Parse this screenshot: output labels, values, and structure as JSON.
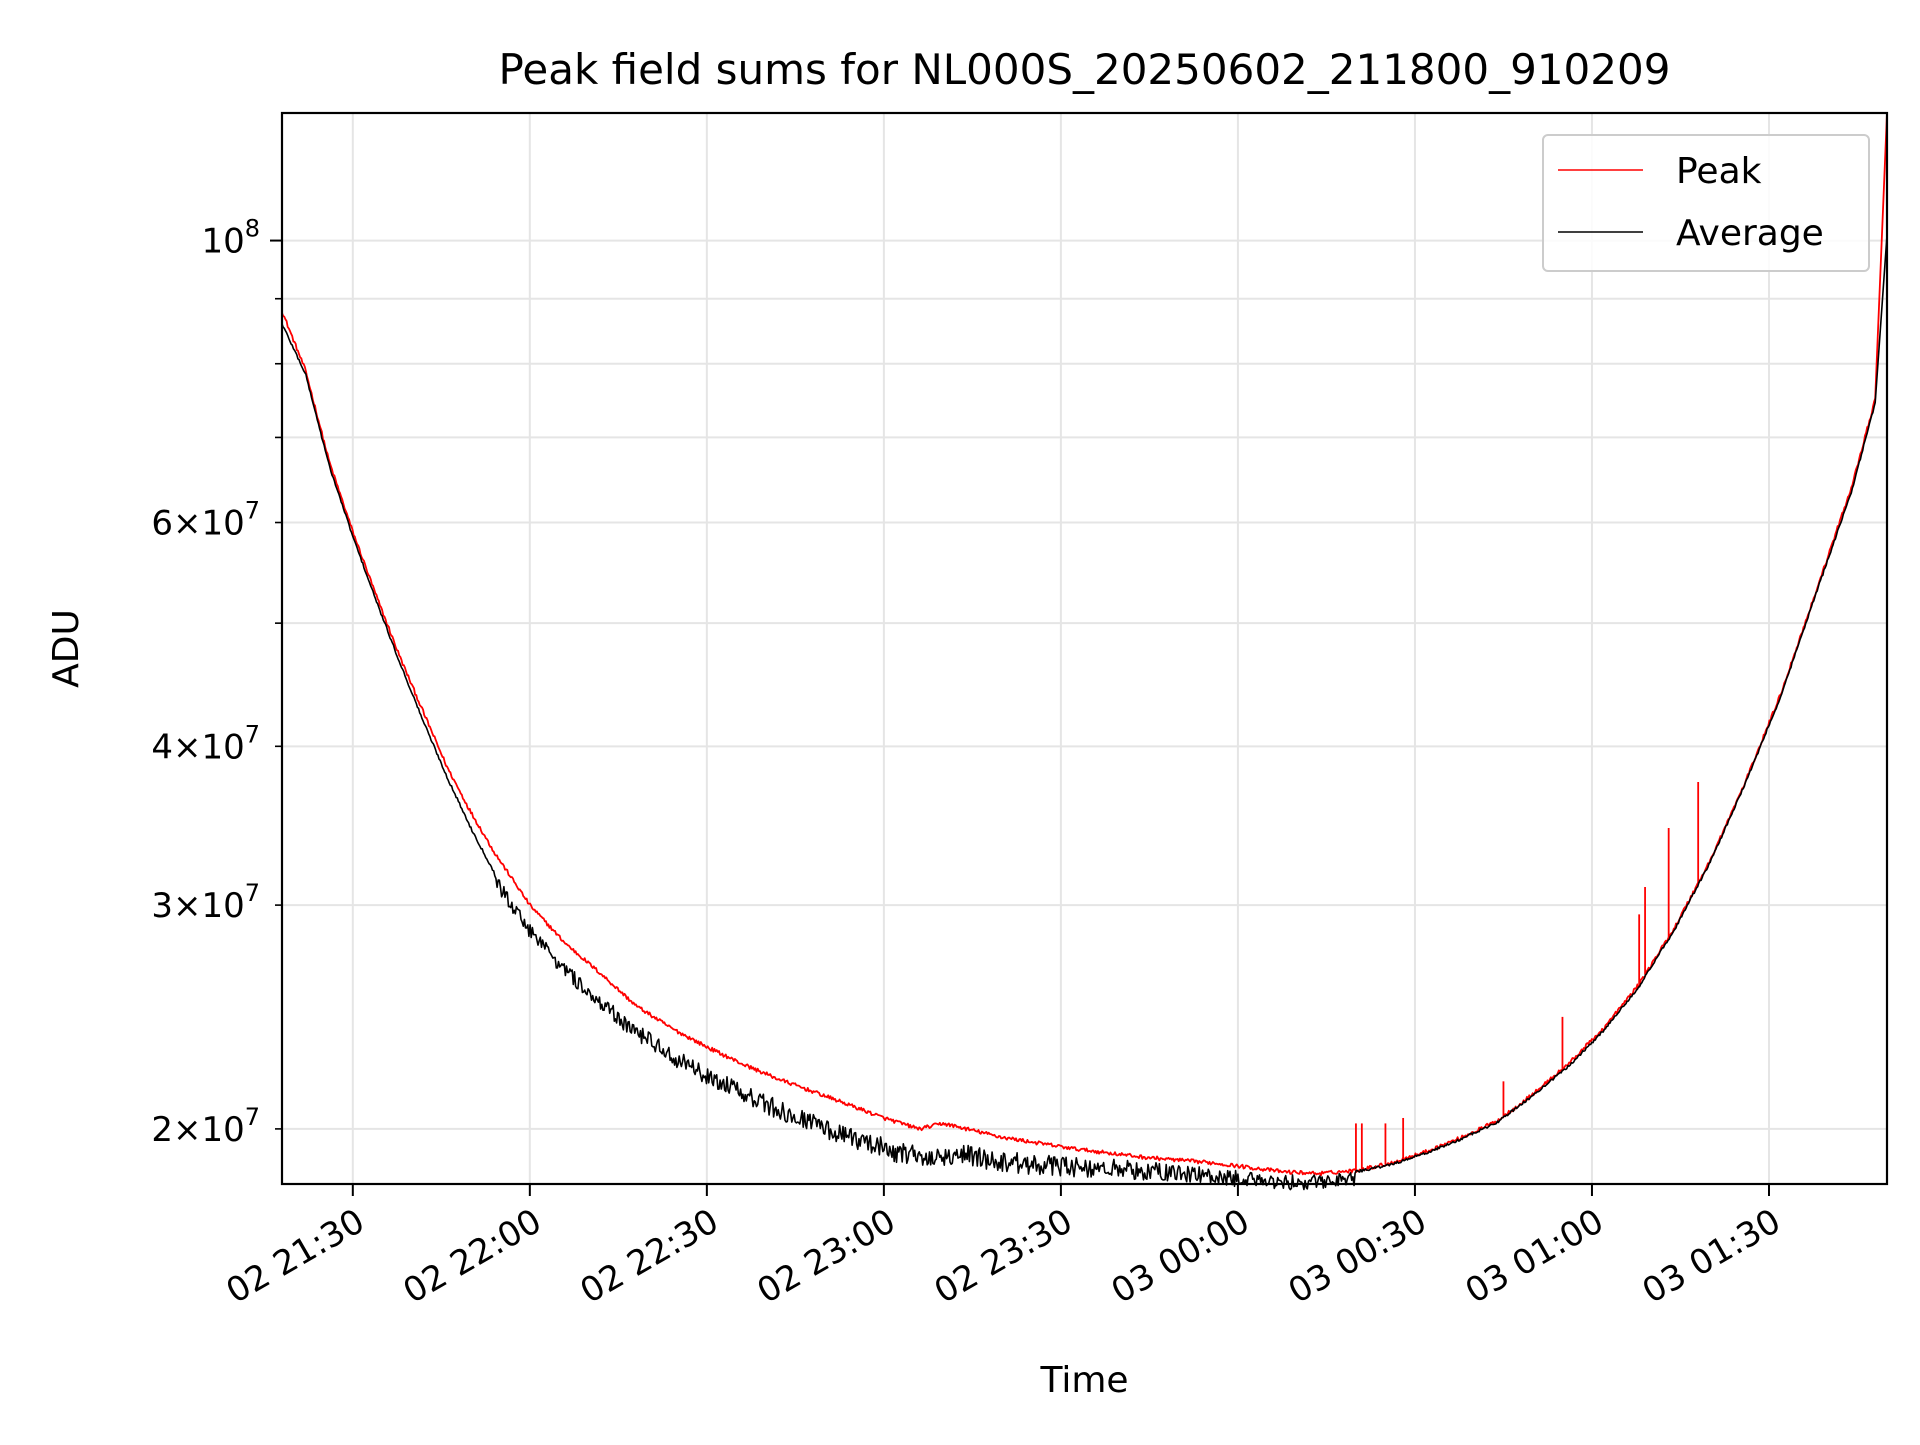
{
  "chart_data": {
    "type": "line",
    "title": "Peak field sums for NL000S_20250602_211800_910209",
    "xlabel": "Time",
    "ylabel": "ADU",
    "x_scale": "time",
    "y_scale": "log",
    "xlim": [
      "2025-06-02 21:18",
      "2025-06-03 01:50"
    ],
    "ylim": [
      18100000,
      126000000
    ],
    "grid": true,
    "legend_position": "top-right",
    "x_ticks": [
      {
        "t": "2025-06-02 21:30",
        "label": "02 21:30"
      },
      {
        "t": "2025-06-02 22:00",
        "label": "02 22:00"
      },
      {
        "t": "2025-06-02 22:30",
        "label": "02 22:30"
      },
      {
        "t": "2025-06-02 23:00",
        "label": "02 23:00"
      },
      {
        "t": "2025-06-02 23:30",
        "label": "02 23:30"
      },
      {
        "t": "2025-06-03 00:00",
        "label": "03 00:00"
      },
      {
        "t": "2025-06-03 00:30",
        "label": "03 00:30"
      },
      {
        "t": "2025-06-03 01:00",
        "label": "03 01:00"
      },
      {
        "t": "2025-06-03 01:30",
        "label": "03 01:30"
      }
    ],
    "y_major_ticks": [
      {
        "value": 100000000,
        "base": "10",
        "exp": "8"
      }
    ],
    "y_minor_ticks": [
      {
        "value": 20000000,
        "mant": "2",
        "exp": "7"
      },
      {
        "value": 30000000,
        "mant": "3",
        "exp": "7"
      },
      {
        "value": 40000000,
        "mant": "4",
        "exp": "7"
      },
      {
        "value": 50000000,
        "mant": "",
        "exp": ""
      },
      {
        "value": 60000000,
        "mant": "6",
        "exp": "7"
      },
      {
        "value": 70000000,
        "mant": "",
        "exp": ""
      },
      {
        "value": 80000000,
        "mant": "",
        "exp": ""
      },
      {
        "value": 90000000,
        "mant": "",
        "exp": ""
      }
    ],
    "series": [
      {
        "name": "Peak",
        "color": "#ff0000",
        "x": [
          "2025-06-02 21:18",
          "2025-06-02 21:22",
          "2025-06-02 21:26",
          "2025-06-02 21:30",
          "2025-06-02 21:34",
          "2025-06-02 21:38",
          "2025-06-02 21:42",
          "2025-06-02 21:46",
          "2025-06-02 21:50",
          "2025-06-02 21:54",
          "2025-06-02 22:00",
          "2025-06-02 22:06",
          "2025-06-02 22:12",
          "2025-06-02 22:18",
          "2025-06-02 22:24",
          "2025-06-02 22:30",
          "2025-06-02 22:36",
          "2025-06-02 22:42",
          "2025-06-02 22:48",
          "2025-06-02 22:54",
          "2025-06-02 23:00",
          "2025-06-02 23:06",
          "2025-06-02 23:10",
          "2025-06-02 23:14",
          "2025-06-02 23:20",
          "2025-06-02 23:26",
          "2025-06-02 23:32",
          "2025-06-02 23:38",
          "2025-06-02 23:44",
          "2025-06-02 23:50",
          "2025-06-02 23:56",
          "2025-06-03 00:02",
          "2025-06-03 00:08",
          "2025-06-03 00:14",
          "2025-06-03 00:20",
          "2025-06-03 00:26",
          "2025-06-03 00:32",
          "2025-06-03 00:38",
          "2025-06-03 00:44",
          "2025-06-03 00:50",
          "2025-06-03 00:56",
          "2025-06-03 01:02",
          "2025-06-03 01:08",
          "2025-06-03 01:14",
          "2025-06-03 01:20",
          "2025-06-03 01:26",
          "2025-06-03 01:32",
          "2025-06-03 01:38",
          "2025-06-03 01:44",
          "2025-06-03 01:48",
          "2025-06-03 01:50"
        ],
        "values": [
          88000000,
          79000000,
          67000000,
          59000000,
          52500000,
          47000000,
          42500000,
          38500000,
          35500000,
          33000000,
          30000000,
          28000000,
          26500000,
          25000000,
          24000000,
          23200000,
          22500000,
          21900000,
          21400000,
          20900000,
          20400000,
          20000000,
          20200000,
          20000000,
          19700000,
          19500000,
          19300000,
          19150000,
          19000000,
          18900000,
          18800000,
          18650000,
          18500000,
          18450000,
          18550000,
          18800000,
          19200000,
          19700000,
          20300000,
          21300000,
          22500000,
          24000000,
          26000000,
          28800000,
          32500000,
          37500000,
          44000000,
          53000000,
          64000000,
          75000000,
          126000000
        ],
        "spikes": [
          {
            "t": "2025-06-03 00:20",
            "value": 20200000
          },
          {
            "t": "2025-06-03 00:21",
            "value": 20200000
          },
          {
            "t": "2025-06-03 00:25",
            "value": 20200000
          },
          {
            "t": "2025-06-03 00:28",
            "value": 20400000
          },
          {
            "t": "2025-06-03 00:45",
            "value": 21800000
          },
          {
            "t": "2025-06-03 00:55",
            "value": 24500000
          },
          {
            "t": "2025-06-03 01:08",
            "value": 29500000
          },
          {
            "t": "2025-06-03 01:09",
            "value": 31000000
          },
          {
            "t": "2025-06-03 01:13",
            "value": 34500000
          },
          {
            "t": "2025-06-03 01:18",
            "value": 37500000
          }
        ]
      },
      {
        "name": "Average",
        "color": "#000000",
        "x": [
          "2025-06-02 21:18",
          "2025-06-02 21:22",
          "2025-06-02 21:26",
          "2025-06-02 21:30",
          "2025-06-02 21:34",
          "2025-06-02 21:38",
          "2025-06-02 21:42",
          "2025-06-02 21:46",
          "2025-06-02 21:50",
          "2025-06-02 21:54",
          "2025-06-02 22:00",
          "2025-06-02 22:06",
          "2025-06-02 22:12",
          "2025-06-02 22:18",
          "2025-06-02 22:24",
          "2025-06-02 22:30",
          "2025-06-02 22:36",
          "2025-06-02 22:42",
          "2025-06-02 22:48",
          "2025-06-02 22:54",
          "2025-06-02 23:00",
          "2025-06-02 23:06",
          "2025-06-02 23:10",
          "2025-06-02 23:14",
          "2025-06-02 23:20",
          "2025-06-02 23:26",
          "2025-06-02 23:32",
          "2025-06-02 23:38",
          "2025-06-02 23:44",
          "2025-06-02 23:50",
          "2025-06-02 23:56",
          "2025-06-03 00:02",
          "2025-06-03 00:08",
          "2025-06-03 00:14",
          "2025-06-03 00:20",
          "2025-06-03 00:26",
          "2025-06-03 00:32",
          "2025-06-03 00:38",
          "2025-06-03 00:44",
          "2025-06-03 00:50",
          "2025-06-03 00:56",
          "2025-06-03 01:02",
          "2025-06-03 01:08",
          "2025-06-03 01:14",
          "2025-06-03 01:20",
          "2025-06-03 01:26",
          "2025-06-03 01:32",
          "2025-06-03 01:38",
          "2025-06-03 01:44",
          "2025-06-03 01:48",
          "2025-06-03 01:50"
        ],
        "values": [
          86000000,
          78500000,
          66500000,
          58500000,
          52000000,
          46500000,
          41800000,
          37800000,
          34500000,
          31800000,
          29000000,
          27000000,
          25500000,
          24200000,
          23200000,
          22400000,
          21700000,
          21100000,
          20600000,
          20100000,
          19700000,
          19400000,
          19500000,
          19500000,
          19200000,
          19100000,
          19000000,
          18950000,
          18850000,
          18750000,
          18650000,
          18500000,
          18400000,
          18400000,
          18500000,
          18750000,
          19150000,
          19650000,
          20250000,
          21250000,
          22400000,
          23900000,
          25900000,
          28700000,
          32400000,
          37400000,
          43800000,
          52800000,
          63500000,
          74500000,
          101000000
        ],
        "noise_window": [
          "2025-06-02 21:54",
          "2025-06-03 00:20"
        ]
      }
    ]
  }
}
